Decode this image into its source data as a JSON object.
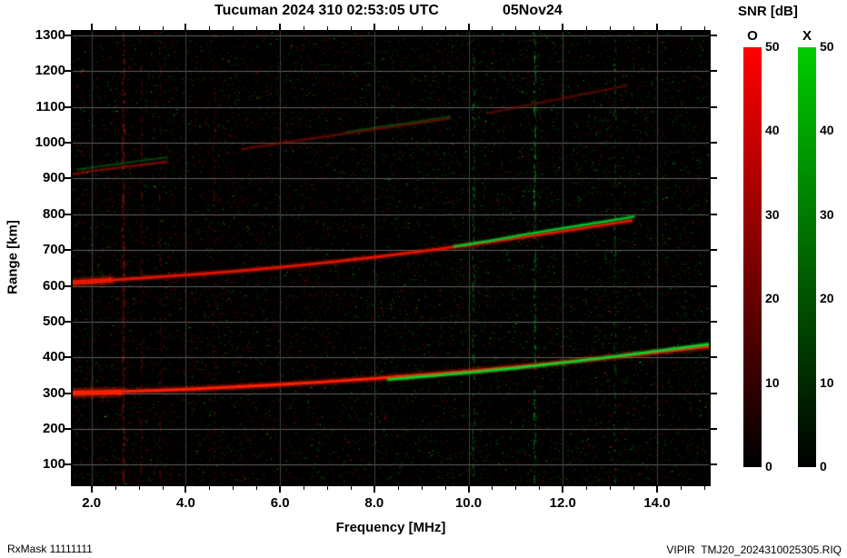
{
  "footer": {
    "left": "RxMask 11111111",
    "right": "VIPIR  TMJ20_2024310025305.RIQ"
  },
  "chart_data": {
    "type": "heatmap",
    "title": "Tucuman 2024 310 02:53:05 UTC",
    "date": "05Nov24",
    "xlabel": "Frequency [MHz]",
    "ylabel": "Range [km]",
    "x_range": [
      1.6,
      15.1
    ],
    "y_range": [
      45,
      1310
    ],
    "x_major_ticks": [
      2,
      4,
      6,
      8,
      10,
      12,
      14
    ],
    "x_major_labels": [
      "2.0",
      "4.0",
      "6.0",
      "8.0",
      "10.0",
      "12.0",
      "14.0"
    ],
    "x_minor_step": 0.5,
    "y_major_ticks": [
      100,
      200,
      300,
      400,
      500,
      600,
      700,
      800,
      900,
      1000,
      1100,
      1200,
      1300
    ],
    "y_major_labels": [
      "100",
      "200",
      "300",
      "400",
      "500",
      "600",
      "700",
      "800",
      "900",
      "1000",
      "1100",
      "1200",
      "1300"
    ],
    "background": "#000000",
    "grid_color_h": "#606060",
    "grid_color_v": "#3e3e3e",
    "colorbar": {
      "title": "SNR [dB]",
      "min": 0,
      "max": 50,
      "ticks": [
        50,
        40,
        30,
        20,
        10,
        0
      ],
      "o": {
        "label": "O",
        "color_top": "#ff0000",
        "color_bottom": "#000000"
      },
      "x": {
        "label": "X",
        "color_top": "#00cc00",
        "color_bottom": "#000000"
      }
    },
    "noise": {
      "count": 22000,
      "green_fraction": 0.45,
      "seed": 12345
    },
    "rfi_streaks": [
      {
        "freq": 2.67,
        "color": "#bb1500",
        "density": 320
      },
      {
        "freq": 3.05,
        "color": "#7a0e00",
        "density": 140
      },
      {
        "freq": 3.45,
        "color": "#6e0c00",
        "density": 120
      },
      {
        "freq": 4.6,
        "color": "#6e0c00",
        "density": 100
      },
      {
        "freq": 10.1,
        "color": "#00a020",
        "density": 160
      },
      {
        "freq": 11.4,
        "color": "#00b025",
        "density": 240
      },
      {
        "freq": 13.1,
        "color": "#008818",
        "density": 110
      }
    ],
    "traces": [
      {
        "name": "1st-hop-O-head",
        "mode": "O",
        "color": "#ff2a00",
        "width": 5,
        "alpha": 1,
        "fuzz_spread": 14,
        "fuzz_density": 1.3,
        "points": [
          [
            1.6,
            300
          ],
          [
            2.6,
            303
          ]
        ]
      },
      {
        "name": "1st-hop-O",
        "mode": "O",
        "color": "#ff1e00",
        "width": 3.2,
        "alpha": 1,
        "fuzz_spread": 9,
        "fuzz_density": 0.8,
        "points": [
          [
            1.6,
            300
          ],
          [
            2,
            302
          ],
          [
            3,
            306
          ],
          [
            4,
            311
          ],
          [
            5,
            317
          ],
          [
            6,
            324
          ],
          [
            7,
            332
          ],
          [
            8,
            341
          ],
          [
            9,
            351
          ],
          [
            10,
            361
          ],
          [
            11,
            373
          ],
          [
            12,
            386
          ],
          [
            13,
            400
          ],
          [
            14,
            415
          ],
          [
            15.1,
            431
          ]
        ]
      },
      {
        "name": "1st-hop-X",
        "mode": "X",
        "color": "#00dd30",
        "width": 2.4,
        "alpha": 0.95,
        "fuzz_spread": 6,
        "fuzz_density": 0.5,
        "points": [
          [
            8.3,
            338
          ],
          [
            9,
            346
          ],
          [
            10,
            357
          ],
          [
            11,
            370
          ],
          [
            12,
            385
          ],
          [
            13,
            401
          ],
          [
            14,
            418
          ],
          [
            15.1,
            437
          ]
        ]
      },
      {
        "name": "2nd-hop-O-head",
        "mode": "O",
        "color": "#ff2a00",
        "width": 4.5,
        "alpha": 1,
        "fuzz_spread": 12,
        "fuzz_density": 1.1,
        "points": [
          [
            1.6,
            609
          ],
          [
            2.4,
            616
          ]
        ]
      },
      {
        "name": "2nd-hop-O",
        "mode": "O",
        "color": "#e81400",
        "width": 2.8,
        "alpha": 0.95,
        "fuzz_spread": 8,
        "fuzz_density": 0.7,
        "points": [
          [
            1.6,
            608
          ],
          [
            2,
            613
          ],
          [
            3,
            621
          ],
          [
            4,
            630
          ],
          [
            5,
            640
          ],
          [
            6,
            652
          ],
          [
            7,
            665
          ],
          [
            8,
            680
          ],
          [
            9,
            696
          ],
          [
            10,
            714
          ],
          [
            11,
            733
          ],
          [
            12,
            753
          ],
          [
            13,
            773
          ],
          [
            13.45,
            782
          ]
        ]
      },
      {
        "name": "2nd-hop-X",
        "mode": "X",
        "color": "#00d12c",
        "width": 2.2,
        "alpha": 0.9,
        "fuzz_spread": 5,
        "fuzz_density": 0.5,
        "points": [
          [
            9.7,
            710
          ],
          [
            10.5,
            727
          ],
          [
            11,
            739
          ],
          [
            12,
            761
          ],
          [
            13,
            782
          ],
          [
            13.5,
            793
          ]
        ]
      },
      {
        "name": "3rd-hop-O-low",
        "mode": "O",
        "color": "#a81200",
        "width": 2,
        "alpha": 0.6,
        "fuzz_spread": 8,
        "fuzz_density": 0.6,
        "points": [
          [
            1.6,
            912
          ],
          [
            2,
            921
          ],
          [
            2.5,
            929
          ],
          [
            3,
            937
          ],
          [
            3.6,
            947
          ]
        ]
      },
      {
        "name": "3rd-hop-X-low",
        "mode": "X",
        "color": "#0e8f20",
        "width": 1.5,
        "alpha": 0.4,
        "fuzz_spread": 6,
        "fuzz_density": 0.5,
        "points": [
          [
            1.7,
            925
          ],
          [
            2.3,
            936
          ],
          [
            3,
            949
          ],
          [
            3.6,
            959
          ]
        ]
      },
      {
        "name": "3rd-hop-O-high",
        "mode": "O",
        "color": "#931000",
        "width": 2,
        "alpha": 0.55,
        "fuzz_spread": 9,
        "fuzz_density": 0.6,
        "points": [
          [
            5.2,
            982
          ],
          [
            6,
            999
          ],
          [
            7,
            1018
          ],
          [
            8,
            1037
          ],
          [
            9,
            1056
          ],
          [
            9.6,
            1068
          ]
        ]
      },
      {
        "name": "3rd-hop-X-high",
        "mode": "X",
        "color": "#0e8f20",
        "width": 1.5,
        "alpha": 0.35,
        "fuzz_spread": 6,
        "fuzz_density": 0.4,
        "points": [
          [
            7.4,
            1030
          ],
          [
            8,
            1042
          ],
          [
            9,
            1061
          ],
          [
            9.6,
            1073
          ]
        ]
      },
      {
        "name": "4th-hop-O",
        "mode": "O",
        "color": "#8f0f00",
        "width": 2,
        "alpha": 0.45,
        "fuzz_spread": 8,
        "fuzz_density": 0.5,
        "points": [
          [
            10.4,
            1082
          ],
          [
            11,
            1098
          ],
          [
            12,
            1124
          ],
          [
            13,
            1150
          ],
          [
            13.35,
            1160
          ]
        ]
      }
    ]
  }
}
